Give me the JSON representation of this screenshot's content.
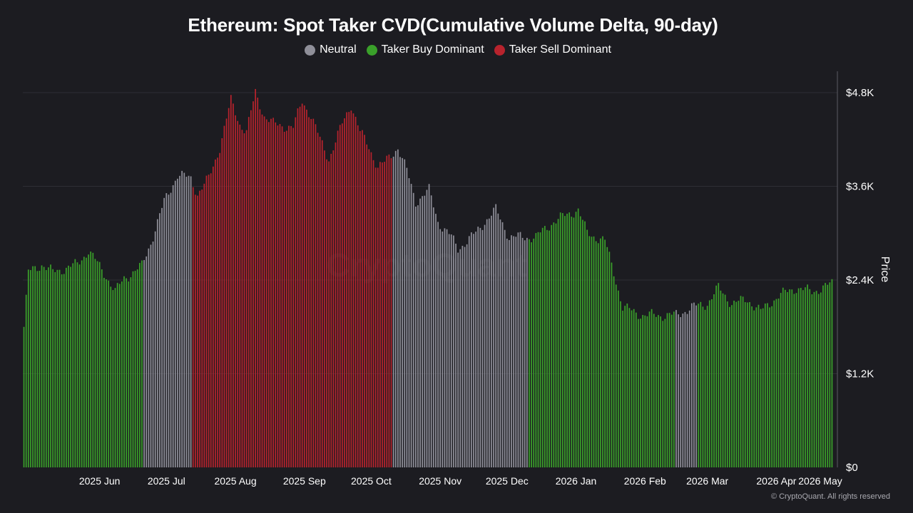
{
  "colors": {
    "background": "#1c1c21",
    "neutral": "#8f8f99",
    "buy": "#3aa02a",
    "sell": "#b8232d",
    "grid": "#2e2e35",
    "axis": "#5a5a62"
  },
  "legend": [
    {
      "label": "Neutral",
      "key": "neutral",
      "color": "#8f8f99"
    },
    {
      "label": "Taker Buy Dominant",
      "key": "buy",
      "color": "#3aa02a"
    },
    {
      "label": "Taker Sell Dominant",
      "key": "sell",
      "color": "#b8232d"
    }
  ],
  "watermark": "CryptoQuant",
  "copyright": "© CryptoQuant. All rights reserved",
  "chart_data": {
    "type": "bar",
    "title": "Ethereum: Spot Taker CVD(Cumulative Volume Delta, 90-day)",
    "ylabel": "Price",
    "ylim": [
      0,
      4800
    ],
    "y_ticks": [
      0,
      1200,
      2400,
      3600,
      4800
    ],
    "y_tick_labels": [
      "$0",
      "$1.2K",
      "$2.4K",
      "$3.6K",
      "$4.8K"
    ],
    "y_axis_position": "right",
    "grid": true,
    "legend_position": "top-center",
    "x_tick_labels": [
      "2025 Jun",
      "2025 Jul",
      "2025 Aug",
      "2025 Sep",
      "2025 Oct",
      "2025 Nov",
      "2025 Dec",
      "2026 Jan",
      "2026 Feb",
      "2026 Mar",
      "2026 Apr",
      "2026 May"
    ],
    "series_note_days": "daily bars from 2025-05-12 to 2026-05-10",
    "start_date": "2025-05-12",
    "segments": [
      {
        "from": "2025-05-12",
        "to": "2025-07-04",
        "regime": "buy"
      },
      {
        "from": "2025-07-05",
        "to": "2025-07-26",
        "regime": "neutral"
      },
      {
        "from": "2025-07-27",
        "to": "2025-10-24",
        "regime": "sell"
      },
      {
        "from": "2025-10-25",
        "to": "2025-12-24",
        "regime": "neutral"
      },
      {
        "from": "2025-12-25",
        "to": "2026-01-31",
        "regime": "buy"
      },
      {
        "from": "2026-02-01",
        "to": "2026-02-28",
        "regime": "buy"
      },
      {
        "from": "2026-03-01",
        "to": "2026-03-10",
        "regime": "neutral"
      },
      {
        "from": "2026-03-11",
        "to": "2026-05-10",
        "regime": "buy"
      }
    ],
    "price_anchors": [
      [
        "2025-05-12",
        1800
      ],
      [
        "2025-05-14",
        2500
      ],
      [
        "2025-05-20",
        2600
      ],
      [
        "2025-05-25",
        2500
      ],
      [
        "2025-06-05",
        2600
      ],
      [
        "2025-06-10",
        2780
      ],
      [
        "2025-06-18",
        2450
      ],
      [
        "2025-06-22",
        2250
      ],
      [
        "2025-06-26",
        2420
      ],
      [
        "2025-07-04",
        2580
      ],
      [
        "2025-07-08",
        2880
      ],
      [
        "2025-07-14",
        3400
      ],
      [
        "2025-07-20",
        3750
      ],
      [
        "2025-07-26",
        3700
      ],
      [
        "2025-07-29",
        3500
      ],
      [
        "2025-08-03",
        3700
      ],
      [
        "2025-08-08",
        4100
      ],
      [
        "2025-08-13",
        4700
      ],
      [
        "2025-08-17",
        4400
      ],
      [
        "2025-08-20",
        4300
      ],
      [
        "2025-08-24",
        4800
      ],
      [
        "2025-08-28",
        4500
      ],
      [
        "2025-09-01",
        4400
      ],
      [
        "2025-09-10",
        4350
      ],
      [
        "2025-09-14",
        4700
      ],
      [
        "2025-09-18",
        4500
      ],
      [
        "2025-09-22",
        4200
      ],
      [
        "2025-09-26",
        3950
      ],
      [
        "2025-10-02",
        4400
      ],
      [
        "2025-10-06",
        4650
      ],
      [
        "2025-10-10",
        4300
      ],
      [
        "2025-10-14",
        4100
      ],
      [
        "2025-10-18",
        3850
      ],
      [
        "2025-10-21",
        3900
      ],
      [
        "2025-10-27",
        4100
      ],
      [
        "2025-10-31",
        3800
      ],
      [
        "2025-11-04",
        3400
      ],
      [
        "2025-11-10",
        3550
      ],
      [
        "2025-11-14",
        3150
      ],
      [
        "2025-11-20",
        2950
      ],
      [
        "2025-11-23",
        2800
      ],
      [
        "2025-12-01",
        3000
      ],
      [
        "2025-12-05",
        3150
      ],
      [
        "2025-12-10",
        3300
      ],
      [
        "2025-12-16",
        2950
      ],
      [
        "2025-12-20",
        2950
      ],
      [
        "2025-12-28",
        2950
      ],
      [
        "2026-01-05",
        3150
      ],
      [
        "2026-01-12",
        3250
      ],
      [
        "2026-01-16",
        3300
      ],
      [
        "2026-01-20",
        3000
      ],
      [
        "2026-01-28",
        2900
      ],
      [
        "2026-02-01",
        2500
      ],
      [
        "2026-02-05",
        2050
      ],
      [
        "2026-02-14",
        1950
      ],
      [
        "2026-02-20",
        1950
      ],
      [
        "2026-03-01",
        1950
      ],
      [
        "2026-03-08",
        2050
      ],
      [
        "2026-03-15",
        2100
      ],
      [
        "2026-03-20",
        2300
      ],
      [
        "2026-03-26",
        2100
      ],
      [
        "2026-04-02",
        2150
      ],
      [
        "2026-04-08",
        2000
      ],
      [
        "2026-04-16",
        2200
      ],
      [
        "2026-04-24",
        2300
      ],
      [
        "2026-05-01",
        2250
      ],
      [
        "2026-05-10",
        2350
      ]
    ]
  }
}
